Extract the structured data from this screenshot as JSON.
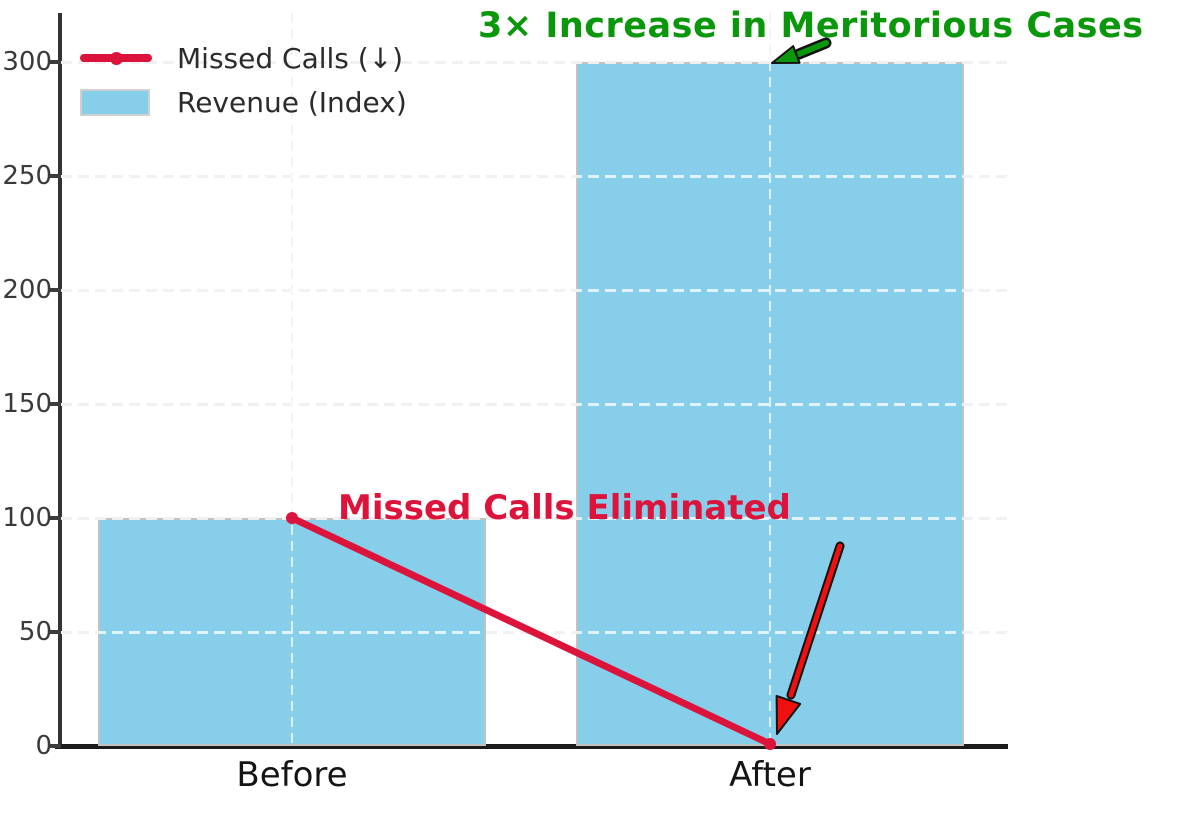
{
  "page": {
    "background": "#ffffff"
  },
  "title": {
    "text": "3× Increase in Meritorious Cases",
    "color": "#0b970b"
  },
  "legend": {
    "position": "upper-left",
    "items": [
      {
        "label": "Missed Calls (↓)",
        "swatch": "line-with-marker",
        "color": "#dc143c"
      },
      {
        "label": "Revenue (Index)",
        "swatch": "patch",
        "color": "#87ceeb"
      }
    ]
  },
  "annotation": {
    "text": "Missed Calls Eliminated",
    "color": "#dc143c"
  },
  "x_axis": {
    "labels": [
      "Before",
      "After"
    ]
  },
  "y_axis": {
    "tick_labels": [
      "0",
      "50",
      "100",
      "150",
      "200",
      "250",
      "300"
    ]
  },
  "chart_data": {
    "type": "bar",
    "categories": [
      "Before",
      "After"
    ],
    "series": [
      {
        "name": "Revenue (Index)",
        "type": "bar",
        "values": [
          100,
          300
        ],
        "color": "#87ceeb"
      },
      {
        "name": "Missed Calls (↓)",
        "type": "line",
        "values": [
          100,
          0
        ],
        "color": "#dc143c",
        "marker": "o"
      }
    ],
    "yticks": [
      0,
      50,
      100,
      150,
      200,
      250,
      300
    ],
    "ylim": [
      0,
      321
    ],
    "grid": true,
    "grid_style": "dashed",
    "legend_position": "upper left",
    "annotations": [
      {
        "text": "3× Increase in Meritorious Cases",
        "color": "#0b970b",
        "arrow_color": "#0b970b",
        "points_to": "top of After bar (300)"
      },
      {
        "text": "Missed Calls Eliminated",
        "color": "#dc143c",
        "arrow_color": "#f01010",
        "points_to": "line end at After (0)"
      }
    ]
  }
}
